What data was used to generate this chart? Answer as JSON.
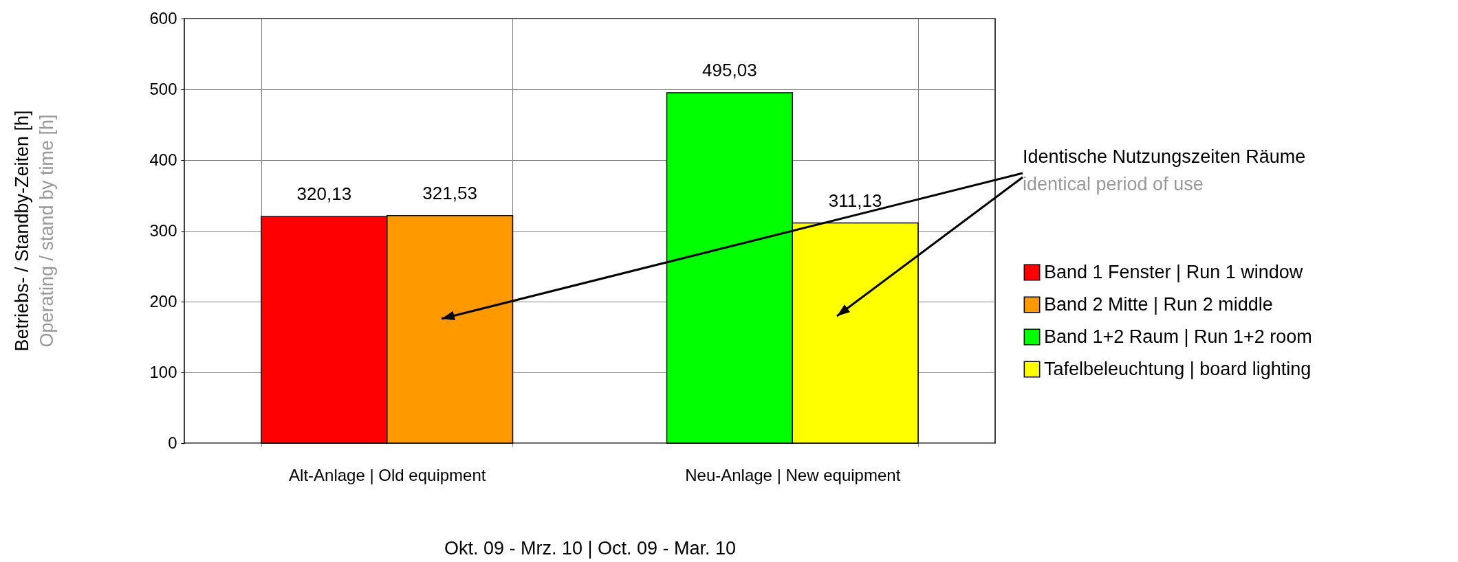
{
  "chart_data": {
    "type": "bar",
    "categories": [
      "Alt-Anlage | Old equipment",
      "Neu-Anlage | New equipment"
    ],
    "series": [
      {
        "name": "Band 1 Fenster | Run 1 window",
        "color": "#ff0000",
        "values": [
          320.13,
          null
        ],
        "value_labels": [
          "320,13",
          null
        ]
      },
      {
        "name": "Band 2 Mitte | Run 2 middle",
        "color": "#ff9900",
        "values": [
          321.53,
          null
        ],
        "value_labels": [
          "321,53",
          null
        ]
      },
      {
        "name": "Band 1+2 Raum | Run 1+2 room",
        "color": "#00ff00",
        "values": [
          null,
          495.03
        ],
        "value_labels": [
          null,
          "495,03"
        ]
      },
      {
        "name": "Tafelbeleuchtung | board lighting",
        "color": "#ffff00",
        "values": [
          null,
          311.13
        ],
        "value_labels": [
          null,
          "311,13"
        ]
      }
    ],
    "xlabel": "Okt. 09 - Mrz. 10 | Oct. 09 - Mar. 10",
    "ylabel": "Betriebs- / Standby-Zeiten [h]\nOperating / stand by time [h]",
    "ylim": [
      0,
      600
    ],
    "yticks": [
      0,
      100,
      200,
      300,
      400,
      500,
      600
    ],
    "grid": true,
    "legend": "right",
    "annotations": [
      "Identische Nutzungszeiten Räume",
      "identical period of use"
    ]
  }
}
